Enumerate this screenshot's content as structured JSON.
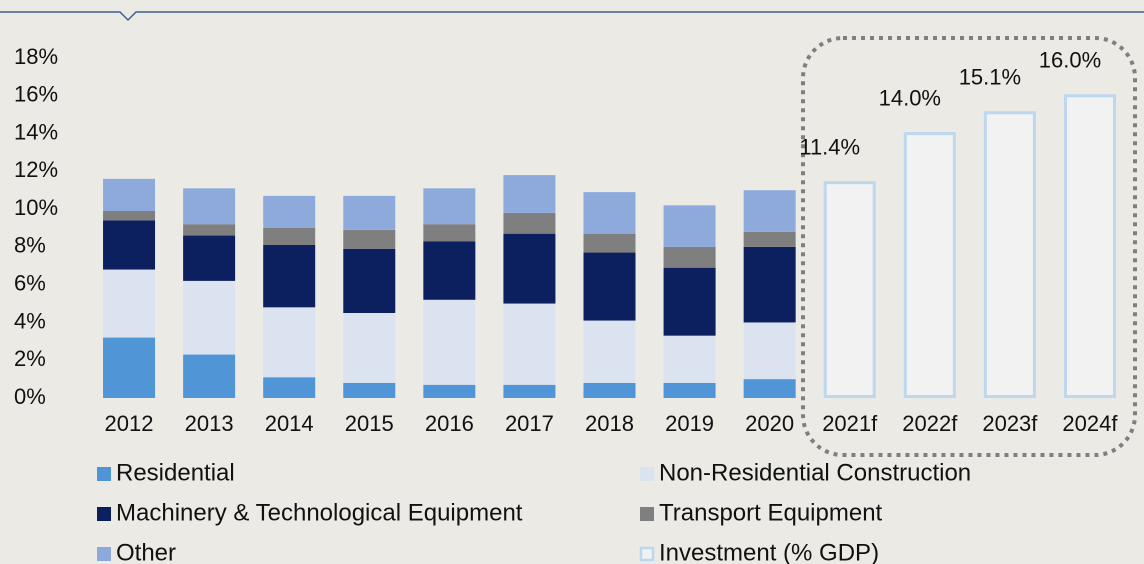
{
  "chart_data": {
    "type": "stacked_bar",
    "categories": [
      "2012",
      "2013",
      "2014",
      "2015",
      "2016",
      "2017",
      "2018",
      "2019",
      "2020",
      "2021f",
      "2022f",
      "2023f",
      "2024f"
    ],
    "series": [
      {
        "name": "Residential",
        "color": "#5096d6",
        "values": [
          3.2,
          2.3,
          1.1,
          0.8,
          0.7,
          0.7,
          0.8,
          0.8,
          1.0,
          null,
          null,
          null,
          null
        ]
      },
      {
        "name": "Non-Residential Construction",
        "color": "#dbe3f1",
        "values": [
          3.6,
          3.9,
          3.7,
          3.7,
          4.5,
          4.3,
          3.3,
          2.5,
          3.0,
          null,
          null,
          null,
          null
        ]
      },
      {
        "name": "Machinery & Technological Equipment",
        "color": "#0c1f5e",
        "values": [
          2.6,
          2.4,
          3.3,
          3.4,
          3.1,
          3.7,
          3.6,
          3.6,
          4.0,
          null,
          null,
          null,
          null
        ]
      },
      {
        "name": "Transport Equipment",
        "color": "#7f7f7f",
        "values": [
          0.5,
          0.6,
          0.9,
          1.0,
          0.9,
          1.1,
          1.0,
          1.1,
          0.8,
          null,
          null,
          null,
          null
        ]
      },
      {
        "name": "Other",
        "color": "#8eaadd",
        "values": [
          1.7,
          1.9,
          1.7,
          1.8,
          1.9,
          2.0,
          2.2,
          2.2,
          2.2,
          null,
          null,
          null,
          null
        ]
      },
      {
        "name": "Investment (% GDP)",
        "color": "#f2f2f2",
        "edgecolor": "#bdd7ee",
        "values": [
          null,
          null,
          null,
          null,
          null,
          null,
          null,
          null,
          null,
          11.4,
          14.0,
          15.1,
          16.0
        ],
        "value_labels": [
          null,
          null,
          null,
          null,
          null,
          null,
          null,
          null,
          null,
          "11.4%",
          "14.0%",
          "15.1%",
          "16.0%"
        ]
      }
    ],
    "ylim": [
      0,
      18
    ],
    "yticks": [
      {
        "value": 0,
        "label": "0%"
      },
      {
        "value": 2,
        "label": "2%"
      },
      {
        "value": 4,
        "label": "4%"
      },
      {
        "value": 6,
        "label": "6%"
      },
      {
        "value": 8,
        "label": "8%"
      },
      {
        "value": 10,
        "label": "10%"
      },
      {
        "value": 12,
        "label": "12%"
      },
      {
        "value": 14,
        "label": "14%"
      },
      {
        "value": 16,
        "label": "16%"
      },
      {
        "value": 18,
        "label": "18%"
      }
    ],
    "grid": false
  }
}
